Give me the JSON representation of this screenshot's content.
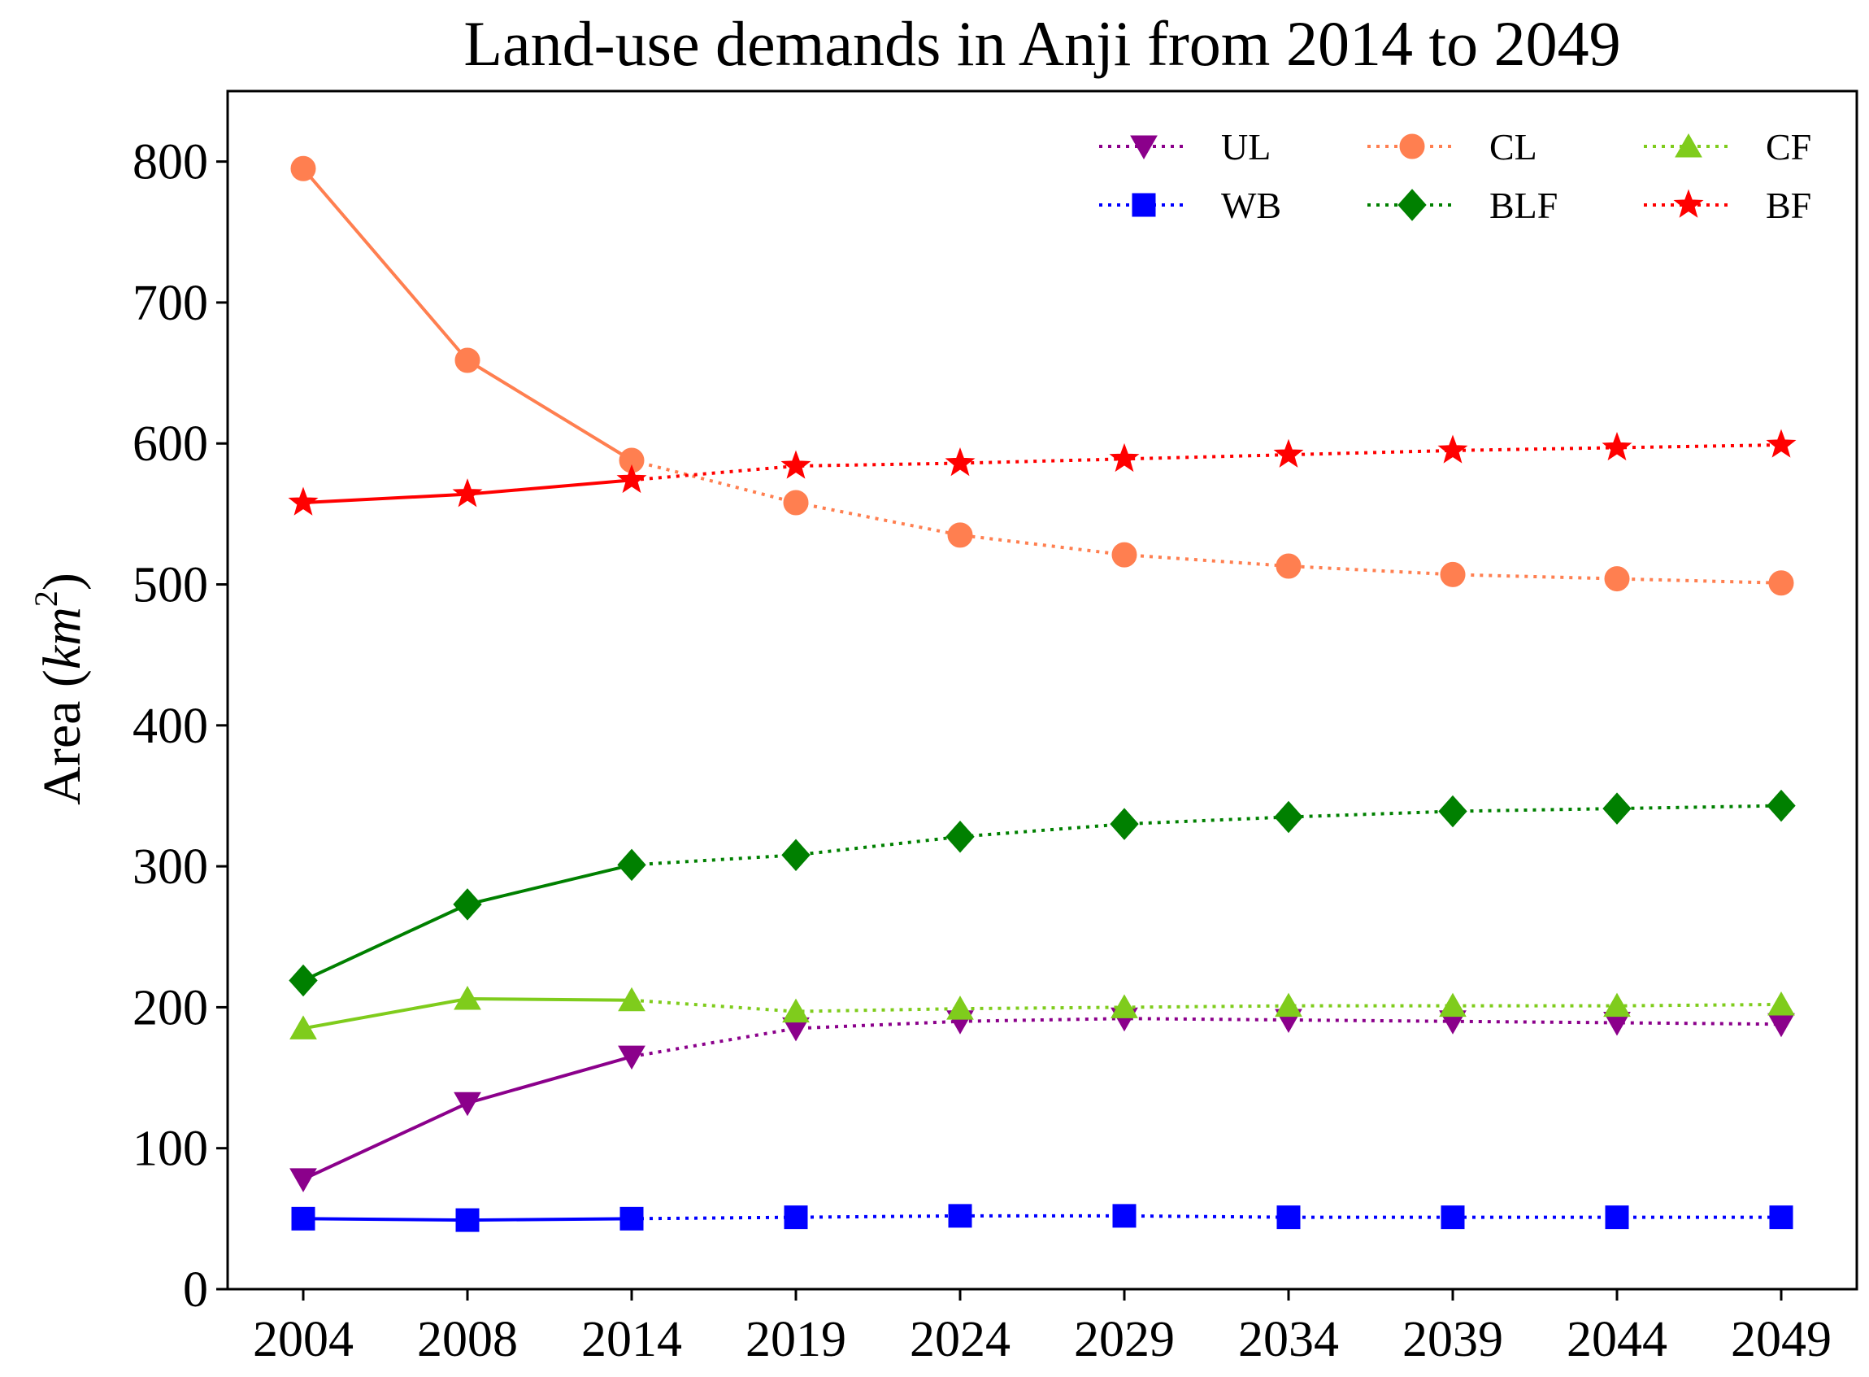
{
  "chart_data": {
    "type": "line",
    "title": "Land-use demands in Anji from 2014 to 2049",
    "xlabel": "",
    "ylabel": "Area",
    "ylabel_unit": "km",
    "ylabel_unit_exp": "2",
    "ylim": [
      0,
      850
    ],
    "yticks": [
      0,
      100,
      200,
      300,
      400,
      500,
      600,
      700,
      800
    ],
    "categories": [
      "2004",
      "2008",
      "2014",
      "2019",
      "2024",
      "2029",
      "2034",
      "2039",
      "2044",
      "2049"
    ],
    "solid_until_index": 2,
    "grid": false,
    "legend_position": "top-right",
    "series": [
      {
        "name": "UL",
        "color": "#8b008b",
        "marker": "triangle-down",
        "values": [
          78,
          132,
          165,
          185,
          190,
          192,
          191,
          190,
          189,
          188
        ]
      },
      {
        "name": "CL",
        "color": "#ff7f50",
        "marker": "circle",
        "values": [
          795,
          659,
          588,
          558,
          535,
          521,
          513,
          507,
          504,
          501
        ]
      },
      {
        "name": "CF",
        "color": "#7fcc1c",
        "marker": "triangle-up",
        "values": [
          185,
          206,
          205,
          197,
          199,
          200,
          201,
          201,
          201,
          202
        ]
      },
      {
        "name": "WB",
        "color": "#0000ff",
        "marker": "square",
        "values": [
          50,
          49,
          50,
          51,
          52,
          52,
          51,
          51,
          51,
          51
        ]
      },
      {
        "name": "BLF",
        "color": "#008000",
        "marker": "diamond",
        "values": [
          219,
          273,
          301,
          308,
          321,
          330,
          335,
          339,
          341,
          343
        ]
      },
      {
        "name": "BF",
        "color": "#ff0000",
        "marker": "star",
        "values": [
          558,
          564,
          574,
          584,
          586,
          589,
          592,
          595,
          597,
          599
        ]
      }
    ]
  }
}
